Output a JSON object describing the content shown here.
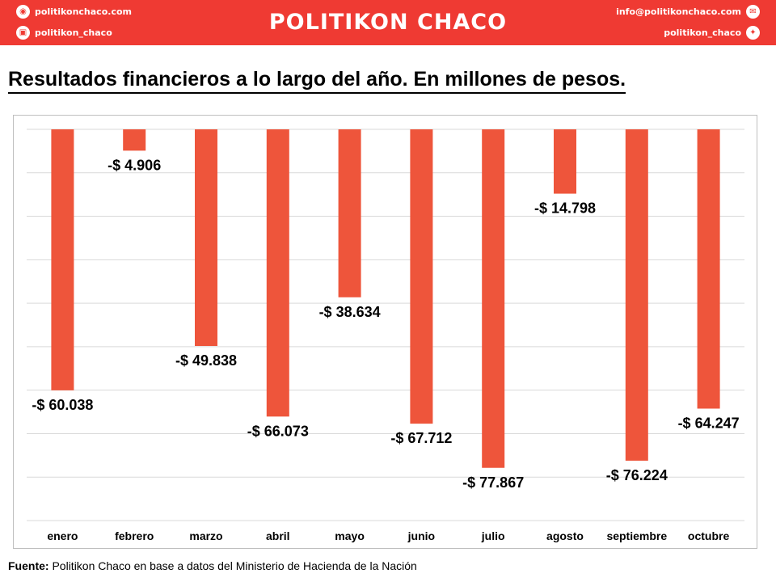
{
  "header": {
    "brand": "POLITIKON CHACO",
    "website": "politikonchaco.com",
    "instagram": "politikon_chaco",
    "email": "info@politikonchaco.com",
    "twitter": "politikon_chaco",
    "colors": {
      "bar": "#ef3a33",
      "text": "#ffffff"
    }
  },
  "source": {
    "label": "Fuente:",
    "text": "Politikon Chaco en base a datos del Ministerio de Hacienda de la Nación"
  },
  "chart_data": {
    "type": "bar",
    "title": "Resultados financieros a lo largo del año. En millones de pesos.",
    "categories": [
      "enero",
      "febrero",
      "marzo",
      "abril",
      "mayo",
      "junio",
      "julio",
      "agosto",
      "septiembre",
      "octubre"
    ],
    "values": [
      -60038,
      -4906,
      -49838,
      -66073,
      -38634,
      -67712,
      -77867,
      -14798,
      -76224,
      -64247
    ],
    "data_labels": [
      "-$ 60.038",
      "-$ 4.906",
      "-$ 49.838",
      "-$ 66.073",
      "-$ 38.634",
      "-$ 67.712",
      "-$ 77.867",
      "-$ 14.798",
      "-$ 76.224",
      "-$ 64.247"
    ],
    "ylim": [
      -90000,
      0
    ],
    "grid": true,
    "bar_color": "#ee553b",
    "grid_color": "#d9d9d9"
  }
}
